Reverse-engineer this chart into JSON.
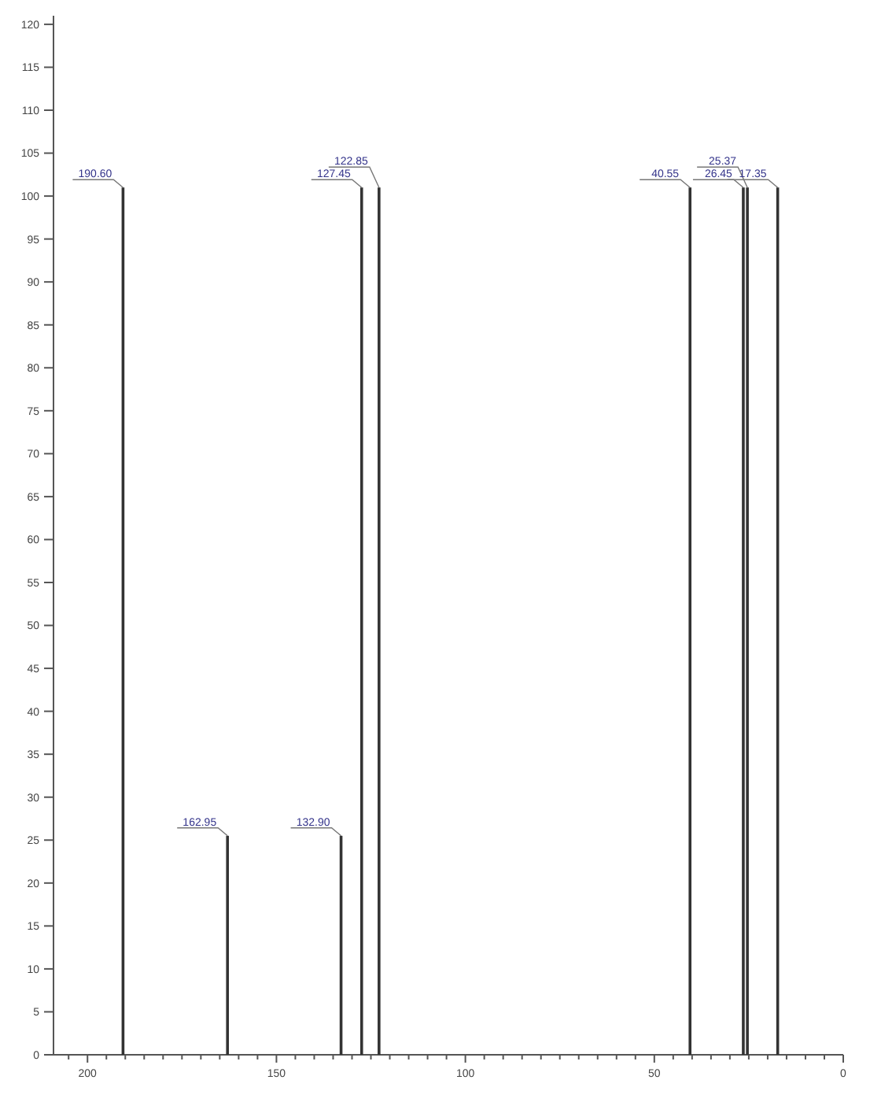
{
  "chart_data": {
    "type": "bar",
    "x": [
      190.6,
      162.95,
      132.9,
      127.45,
      122.85,
      40.55,
      26.45,
      25.37,
      17.35
    ],
    "values": [
      101,
      25.5,
      25.5,
      101,
      101,
      101,
      101,
      101,
      101
    ],
    "color": "#333333",
    "xlim": [
      209,
      0
    ],
    "xticks": [
      {
        "value": 205,
        "label": null
      },
      200,
      {
        "value": 195,
        "label": null
      },
      {
        "value": 190,
        "label": null
      },
      {
        "value": 185,
        "label": null
      },
      {
        "value": 180,
        "label": null
      },
      {
        "value": 175,
        "label": null
      },
      {
        "value": 170,
        "label": null
      },
      {
        "value": 165,
        "label": null
      },
      {
        "value": 160,
        "label": null
      },
      {
        "value": 155,
        "label": null
      },
      150,
      {
        "value": 145,
        "label": null
      },
      {
        "value": 140,
        "label": null
      },
      {
        "value": 135,
        "label": null
      },
      {
        "value": 130,
        "label": null
      },
      {
        "value": 125,
        "label": null
      },
      {
        "value": 120,
        "label": null
      },
      {
        "value": 115,
        "label": null
      },
      {
        "value": 110,
        "label": null
      },
      {
        "value": 105,
        "label": null
      },
      100,
      {
        "value": 95,
        "label": null
      },
      {
        "value": 90,
        "label": null
      },
      {
        "value": 85,
        "label": null
      },
      {
        "value": 80,
        "label": null
      },
      {
        "value": 75,
        "label": null
      },
      {
        "value": 70,
        "label": null
      },
      {
        "value": 65,
        "label": null
      },
      {
        "value": 60,
        "label": null
      },
      {
        "value": 55,
        "label": null
      },
      50,
      {
        "value": 45,
        "label": null
      },
      {
        "value": 40,
        "label": null
      },
      {
        "value": 35,
        "label": null
      },
      {
        "value": 30,
        "label": null
      },
      {
        "value": 25,
        "label": null
      },
      {
        "value": 20,
        "label": null
      },
      {
        "value": 15,
        "label": null
      },
      {
        "value": 10,
        "label": null
      },
      {
        "value": 5,
        "label": null
      },
      0
    ],
    "ylim": [
      0,
      121
    ],
    "yticks": [
      0,
      5,
      10,
      15,
      20,
      25,
      30,
      35,
      40,
      45,
      50,
      55,
      60,
      65,
      70,
      75,
      80,
      85,
      90,
      95,
      100,
      105,
      110,
      115,
      120
    ],
    "annotations": [
      {
        "text": "190.60",
        "x": 190.6,
        "y": 101
      },
      {
        "text": "162.95",
        "x": 162.95,
        "y": 25.5
      },
      {
        "text": "132.90",
        "x": 132.9,
        "y": 25.5
      },
      {
        "text": "127.45",
        "x": 127.45,
        "y": 101
      },
      {
        "text": "122.85",
        "x": 122.85,
        "y": 101
      },
      {
        "text": "40.55",
        "x": 40.55,
        "y": 101
      },
      {
        "text": "26.45",
        "x": 26.45,
        "y": 101
      },
      {
        "text": "25.37",
        "x": 25.37,
        "y": 101
      },
      {
        "text": "17.35",
        "x": 17.35,
        "y": 101
      }
    ]
  }
}
